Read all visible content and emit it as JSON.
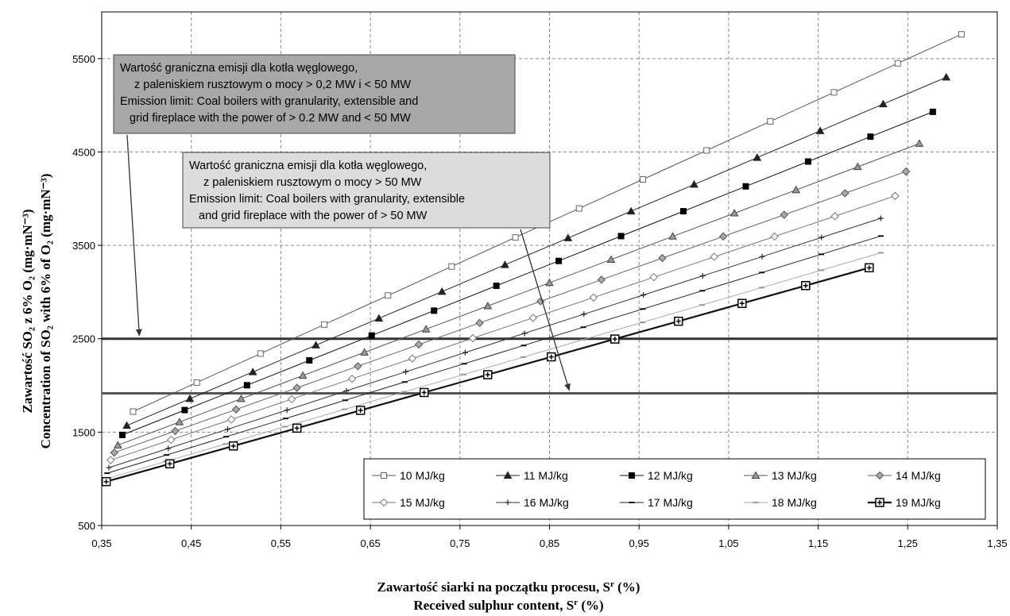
{
  "chart_data": {
    "type": "line",
    "title": "",
    "xlabel_line1": "Zawartość siarki na początku procesu, S",
    "xlabel_line1_sup": "r",
    "xlabel_line1_suffix": " (%)",
    "xlabel_line2": "Received sulphur content, S",
    "xlabel_line2_sup": "r",
    "xlabel_line2_suffix": " (%)",
    "ylabel_line1": "Zawartość SO₂ z 6% O₂ (mg·mN⁻³)",
    "ylabel_line2": "Concentration of  SO₂ with 6% of O₂ (mg·mN⁻³)",
    "xlim": [
      0.35,
      1.35
    ],
    "ylim": [
      500,
      6000
    ],
    "xticks": [
      0.35,
      0.45,
      0.55,
      0.65,
      0.75,
      0.85,
      0.95,
      1.05,
      1.15,
      1.25,
      1.35
    ],
    "xtick_labels": [
      "0,35",
      "0,45",
      "0,55",
      "0,65",
      "0,75",
      "0,85",
      "0,95",
      "1,05",
      "1,15",
      "1,25",
      "1,35"
    ],
    "yticks": [
      500,
      1500,
      2500,
      3500,
      4500,
      5500
    ],
    "ytick_labels": [
      "500",
      "1500",
      "2500",
      "3500",
      "4500",
      "5500"
    ],
    "grid": true,
    "legend_position": "bottom-right",
    "series": [
      {
        "name": "10 MJ/kg",
        "marker": "square-open",
        "color": "#555555",
        "x0": 0.385,
        "y0": 1720,
        "x1": 1.31,
        "y1": 5760,
        "n": 14
      },
      {
        "name": "11 MJ/kg",
        "marker": "triangle-filled",
        "color": "#222222",
        "x0": 0.378,
        "y0": 1570,
        "x1": 1.293,
        "y1": 5300,
        "n": 14
      },
      {
        "name": "12 MJ/kg",
        "marker": "square-filled",
        "color": "#111111",
        "x0": 0.373,
        "y0": 1470,
        "x1": 1.278,
        "y1": 4930,
        "n": 14
      },
      {
        "name": "13 MJ/kg",
        "marker": "triangle-gray",
        "color": "#555555",
        "x0": 0.368,
        "y0": 1360,
        "x1": 1.263,
        "y1": 4590,
        "n": 14
      },
      {
        "name": "14 MJ/kg",
        "marker": "diamond-gray",
        "color": "#666666",
        "x0": 0.364,
        "y0": 1280,
        "x1": 1.248,
        "y1": 4290,
        "n": 14
      },
      {
        "name": "15 MJ/kg",
        "marker": "diamond-open",
        "color": "#777777",
        "x0": 0.36,
        "y0": 1200,
        "x1": 1.236,
        "y1": 4030,
        "n": 14
      },
      {
        "name": "16 MJ/kg",
        "marker": "plus",
        "color": "#333333",
        "x0": 0.358,
        "y0": 1120,
        "x1": 1.22,
        "y1": 3790,
        "n": 14
      },
      {
        "name": "17 MJ/kg",
        "marker": "dash",
        "color": "#222222",
        "x0": 0.356,
        "y0": 1060,
        "x1": 1.22,
        "y1": 3600,
        "n": 14
      },
      {
        "name": "18 MJ/kg",
        "marker": "dash-light",
        "color": "#aaaaaa",
        "x0": 0.355,
        "y0": 1000,
        "x1": 1.22,
        "y1": 3420,
        "n": 14
      },
      {
        "name": "19 MJ/kg",
        "marker": "square-cross",
        "color": "#111111",
        "x0": 0.355,
        "y0": 970,
        "x1": 1.207,
        "y1": 3260,
        "n": 13
      }
    ],
    "reference_lines": [
      {
        "y": 2500,
        "color": "#333333"
      },
      {
        "y": 1915,
        "color": "#555555"
      }
    ],
    "annotations": [
      {
        "lines": [
          "Wartość graniczna emisji dla kotła węglowego,",
          "z paleniskiem rusztowym o mocy > 0,2 MW i < 50 MW",
          "Emission limit: Coal boilers with granularity, extensible and",
          "grid fireplace with the power of > 0.2 MW and < 50 MW"
        ],
        "fill": "#a8a8a8",
        "arrow_to": {
          "x": 0.392,
          "y": 2500
        }
      },
      {
        "lines": [
          "Wartość graniczna emisji dla kotła węglowego,",
          "z paleniskiem rusztowym o mocy > 50 MW",
          "Emission limit: Coal boilers with granularity, extensible",
          "and grid fireplace with the power of > 50 MW"
        ],
        "fill": "#dcdcdc",
        "arrow_to": {
          "x": 0.872,
          "y": 1915
        }
      }
    ]
  }
}
